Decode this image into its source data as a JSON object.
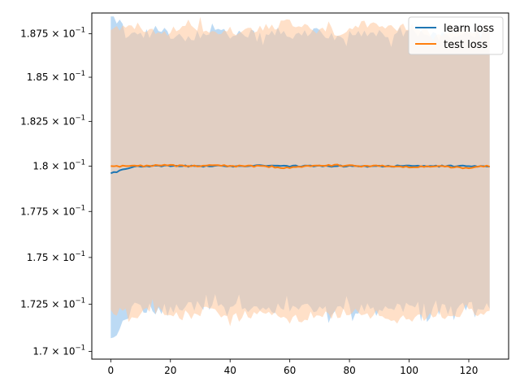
{
  "chart_data": {
    "type": "line",
    "title": "",
    "xlabel": "",
    "ylabel": "",
    "xlim": [
      -6.35,
      133.35
    ],
    "ylim": [
      0.1696,
      0.1887
    ],
    "yscale": "log",
    "grid": false,
    "legend_position": "top-right",
    "x_ticks": [
      0,
      20,
      40,
      60,
      80,
      100,
      120
    ],
    "x_tick_labels": [
      "0",
      "20",
      "40",
      "60",
      "80",
      "100",
      "120"
    ],
    "y_ticks": [
      0.17,
      0.1725,
      0.175,
      0.1775,
      0.18,
      0.1825,
      0.185,
      0.1875
    ],
    "y_tick_labels": [
      {
        "mantissa": "1.7",
        "base": "10",
        "exp": "−1"
      },
      {
        "mantissa": "1.725",
        "base": "10",
        "exp": "−1"
      },
      {
        "mantissa": "1.75",
        "base": "10",
        "exp": "−1"
      },
      {
        "mantissa": "1.775",
        "base": "10",
        "exp": "−1"
      },
      {
        "mantissa": "1.8",
        "base": "10",
        "exp": "−1"
      },
      {
        "mantissa": "1.825",
        "base": "10",
        "exp": "−1"
      },
      {
        "mantissa": "1.85",
        "base": "10",
        "exp": "−1"
      },
      {
        "mantissa": "1.875",
        "base": "10",
        "exp": "−1"
      }
    ],
    "x_range": [
      0,
      127
    ],
    "series": [
      {
        "name": "learn loss",
        "color": "#1f77b4",
        "band_color": "#a6cdf0",
        "mean": [
          0.1796,
          0.18,
          0.18,
          0.18,
          0.18,
          0.18,
          0.18005,
          0.18,
          0.18,
          0.18,
          0.18,
          0.18,
          0.18,
          0.18,
          0.18,
          0.18
        ],
        "upper": [
          0.1885,
          0.1874,
          0.1876,
          0.1873,
          0.1876,
          0.1874,
          0.1875,
          0.1874,
          0.1876,
          0.1873,
          0.1875,
          0.1874,
          0.1876,
          0.1873,
          0.1875,
          0.1876
        ],
        "lower": [
          0.1707,
          0.1724,
          0.1722,
          0.1725,
          0.1723,
          0.1724,
          0.1722,
          0.1724,
          0.1723,
          0.1721,
          0.1723,
          0.1722,
          0.1724,
          0.1722,
          0.1723,
          0.1724
        ]
      },
      {
        "name": "test loss",
        "color": "#ff7f0e",
        "band_color": "#ffc79a",
        "mean": [
          0.18,
          0.18,
          0.18005,
          0.18,
          0.18005,
          0.18,
          0.18,
          0.1799,
          0.18,
          0.18005,
          0.18,
          0.18,
          0.17995,
          0.18,
          0.1799,
          0.18
        ],
        "upper": [
          0.1877,
          0.1879,
          0.1874,
          0.188,
          0.1878,
          0.1876,
          0.1879,
          0.1881,
          0.1877,
          0.1876,
          0.188,
          0.1877,
          0.1879,
          0.1876,
          0.1878,
          0.1877
        ],
        "lower": [
          0.1722,
          0.172,
          0.1721,
          0.1719,
          0.1722,
          0.1718,
          0.1721,
          0.1716,
          0.172,
          0.1719,
          0.1722,
          0.1716,
          0.1718,
          0.172,
          0.1719,
          0.1723
        ]
      }
    ]
  }
}
